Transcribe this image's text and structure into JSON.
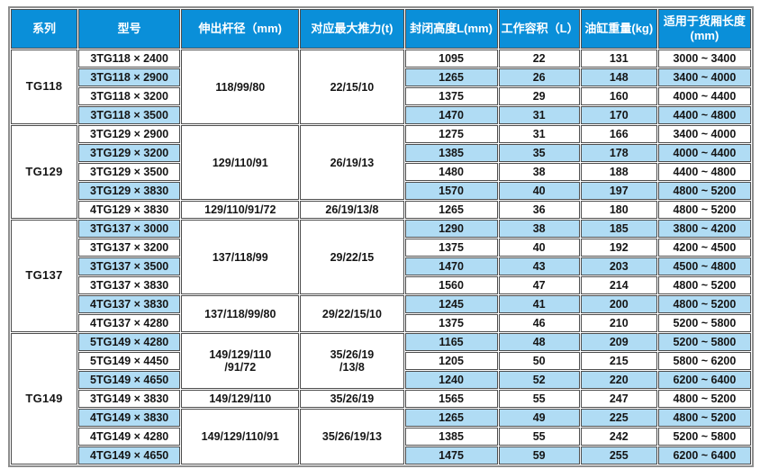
{
  "colors": {
    "header_bg": "#0a8fd9",
    "stripe_bg": "#b0dcf4",
    "cell_border": "#4d4d4d",
    "outer_border": "#8e8e8e",
    "header_text": "#ffffff",
    "body_text": "#151515"
  },
  "table": {
    "headers": [
      "系列",
      "型号",
      "伸出杆径（mm)",
      "对应最大推力(t)",
      "封闭高度L(mm)",
      "工作容积（L）",
      "油缸重量(kg)",
      "适用于货厢长度\n(mm)"
    ],
    "groups": [
      {
        "series": "TG118",
        "rows": [
          {
            "model": "3TG118 × 2400",
            "rod": "118/99/80",
            "rod_rows": 4,
            "thrust": "22/15/10",
            "thrust_rows": 4,
            "closed_height": "1095",
            "volume": "22",
            "weight": "131",
            "box_length": "3000 ~ 3400",
            "shaded": false
          },
          {
            "model": "3TG118 × 2900",
            "closed_height": "1265",
            "volume": "26",
            "weight": "148",
            "box_length": "3400 ~ 4000",
            "shaded": true
          },
          {
            "model": "3TG118 × 3200",
            "closed_height": "1375",
            "volume": "29",
            "weight": "160",
            "box_length": "4000 ~ 4400",
            "shaded": false
          },
          {
            "model": "3TG118 × 3500",
            "closed_height": "1470",
            "volume": "31",
            "weight": "170",
            "box_length": "4400 ~ 4800",
            "shaded": true
          }
        ]
      },
      {
        "series": "TG129",
        "rows": [
          {
            "model": "3TG129 × 2900",
            "rod": "129/110/91",
            "rod_rows": 4,
            "thrust": "26/19/13",
            "thrust_rows": 4,
            "closed_height": "1275",
            "volume": "31",
            "weight": "166",
            "box_length": "3400 ~ 4000",
            "shaded": false
          },
          {
            "model": "3TG129 × 3200",
            "closed_height": "1385",
            "volume": "35",
            "weight": "178",
            "box_length": "4000 ~ 4400",
            "shaded": true
          },
          {
            "model": "3TG129 × 3500",
            "closed_height": "1480",
            "volume": "38",
            "weight": "188",
            "box_length": "4400 ~ 4800",
            "shaded": false
          },
          {
            "model": "3TG129 × 3830",
            "closed_height": "1570",
            "volume": "40",
            "weight": "197",
            "box_length": "4800 ~ 5200",
            "shaded": true
          },
          {
            "model": "4TG129 × 3830",
            "rod": "129/110/91/72",
            "rod_rows": 1,
            "thrust": "26/19/13/8",
            "thrust_rows": 1,
            "closed_height": "1265",
            "volume": "36",
            "weight": "180",
            "box_length": "4800 ~ 5200",
            "shaded": false
          }
        ]
      },
      {
        "series": "TG137",
        "rows": [
          {
            "model": "3TG137 × 3000",
            "rod": "137/118/99",
            "rod_rows": 4,
            "thrust": "29/22/15",
            "thrust_rows": 4,
            "closed_height": "1290",
            "volume": "38",
            "weight": "185",
            "box_length": "3800 ~ 4200",
            "shaded": true
          },
          {
            "model": "3TG137 × 3200",
            "closed_height": "1375",
            "volume": "40",
            "weight": "192",
            "box_length": "4200 ~ 4500",
            "shaded": false
          },
          {
            "model": "3TG137 × 3500",
            "closed_height": "1470",
            "volume": "43",
            "weight": "203",
            "box_length": "4500 ~ 4800",
            "shaded": true
          },
          {
            "model": "3TG137 × 3830",
            "closed_height": "1560",
            "volume": "47",
            "weight": "214",
            "box_length": "4800 ~ 5200",
            "shaded": false
          },
          {
            "model": "4TG137 × 3830",
            "rod": "137/118/99/80",
            "rod_rows": 2,
            "thrust": "29/22/15/10",
            "thrust_rows": 2,
            "closed_height": "1245",
            "volume": "41",
            "weight": "200",
            "box_length": "4800 ~ 5200",
            "shaded": true
          },
          {
            "model": "4TG137 × 4280",
            "closed_height": "1375",
            "volume": "46",
            "weight": "210",
            "box_length": "5200 ~ 5800",
            "shaded": false
          }
        ]
      },
      {
        "series": "TG149",
        "rows": [
          {
            "model": "5TG149 × 4280",
            "rod": "149/129/110\n/91/72",
            "rod_rows": 3,
            "thrust": "35/26/19\n/13/8",
            "thrust_rows": 3,
            "closed_height": "1165",
            "volume": "48",
            "weight": "209",
            "box_length": "5200 ~ 5800",
            "shaded": true
          },
          {
            "model": "5TG149 × 4450",
            "closed_height": "1205",
            "volume": "50",
            "weight": "215",
            "box_length": "5800 ~ 6200",
            "shaded": false
          },
          {
            "model": "5TG149 × 4650",
            "closed_height": "1240",
            "volume": "52",
            "weight": "220",
            "box_length": "6200 ~ 6400",
            "shaded": true
          },
          {
            "model": "3TG149 × 3830",
            "rod": "149/129/110",
            "rod_rows": 1,
            "thrust": "35/26/19",
            "thrust_rows": 1,
            "closed_height": "1565",
            "volume": "55",
            "weight": "247",
            "box_length": "4800 ~ 5200",
            "shaded": false
          },
          {
            "model": "4TG149 × 3830",
            "rod": "149/129/110/91",
            "rod_rows": 3,
            "thrust": "35/26/19/13",
            "thrust_rows": 3,
            "closed_height": "1265",
            "volume": "49",
            "weight": "225",
            "box_length": "4800 ~ 5200",
            "shaded": true
          },
          {
            "model": "4TG149 × 4280",
            "closed_height": "1385",
            "volume": "55",
            "weight": "242",
            "box_length": "5200 ~ 5800",
            "shaded": false
          },
          {
            "model": "4TG149 × 4650",
            "closed_height": "1475",
            "volume": "59",
            "weight": "255",
            "box_length": "6200 ~ 6400",
            "shaded": true
          }
        ]
      }
    ]
  }
}
